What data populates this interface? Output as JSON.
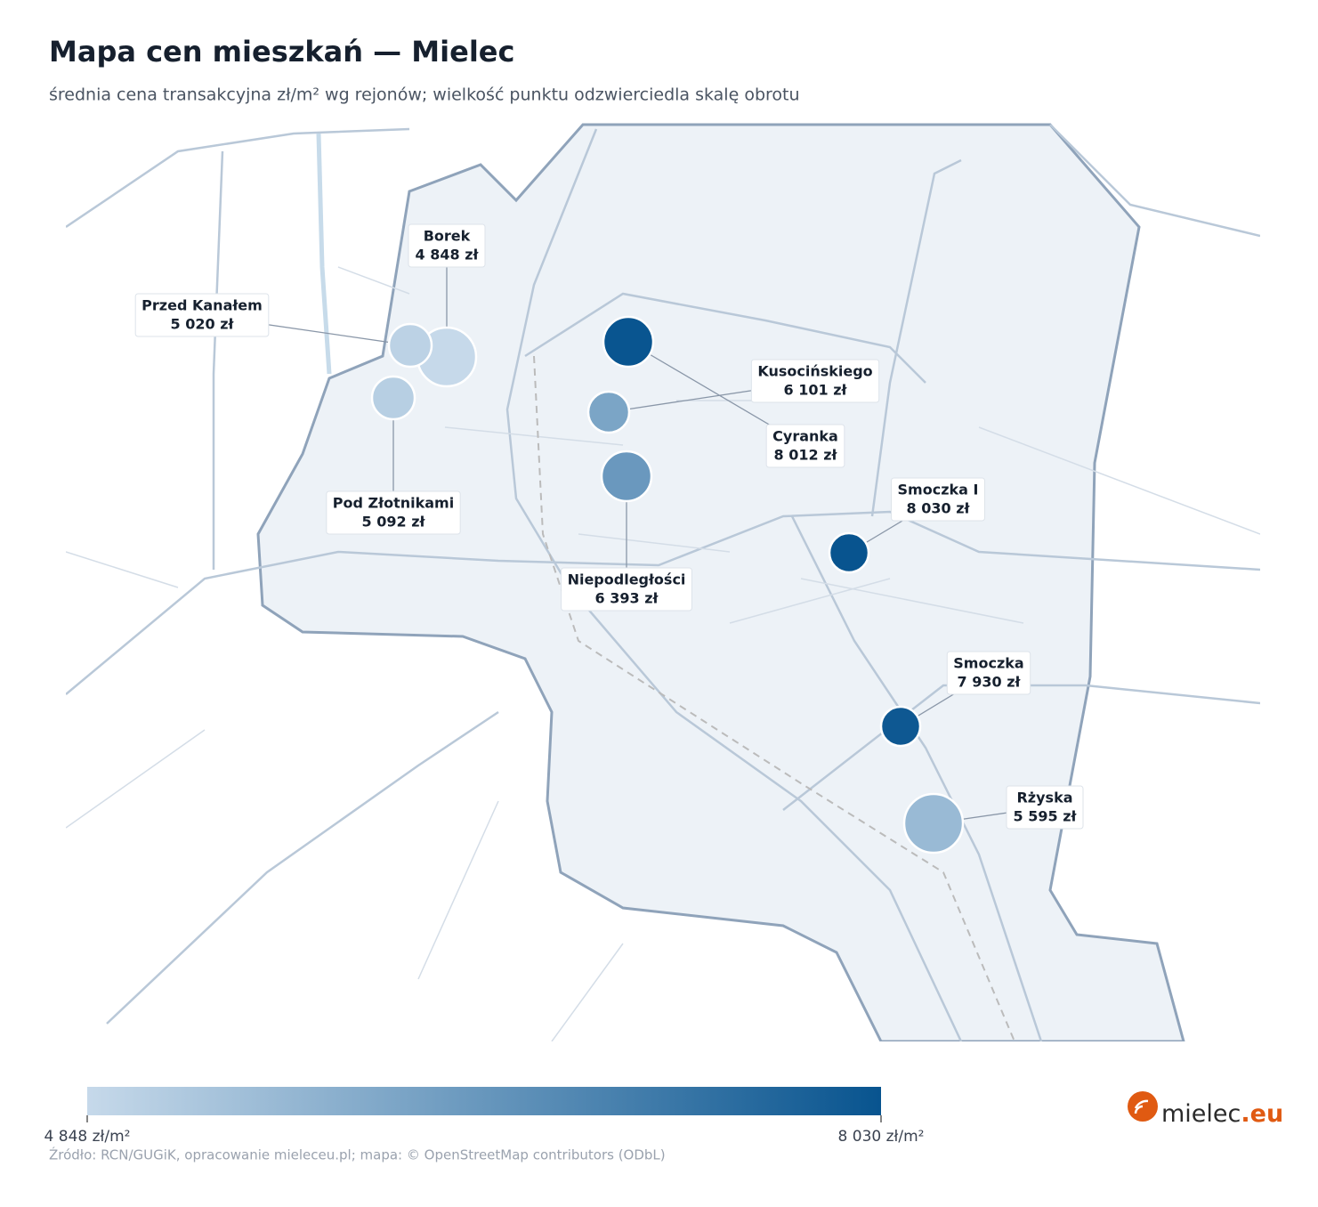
{
  "chart_data": {
    "type": "map",
    "title": "Mapa cen mieszkań — Mielec",
    "subtitle": "średnia cena transakcyjna zł/m² wg rejonów; wielkość punktu odzwierciedla skalę obrotu",
    "categories": [
      "Borek",
      "Przed Kanałem",
      "Pod Złotnikami",
      "Kusocińskiego",
      "Cyranka",
      "Smoczka I",
      "Niepodległości",
      "Smoczka",
      "Rżyska"
    ],
    "values": [
      4848,
      5020,
      5092,
      6101,
      8012,
      8030,
      6393,
      7930,
      5595
    ],
    "value_labels": [
      "4 848 zł",
      "5 020 zł",
      "5 092 zł",
      "6 101 zł",
      "8 012 zł",
      "8 030 zł",
      "6 393 zł",
      "7 930 zł",
      "5 595 zł"
    ],
    "colorscale": {
      "min": {
        "value": 4848,
        "label": "4 848 zł/m²"
      },
      "max": {
        "value": 8030,
        "label": "8 030 zł/m²"
      },
      "colors": [
        "#c6d9ea",
        "#08548f"
      ]
    }
  },
  "source": "Źródło: RCN/GUGiK, opracowanie mieleceu.pl; mapa: © OpenStreetMap contributors (ODbL)",
  "logo": {
    "name": "mielec",
    "suffix": ".eu"
  }
}
